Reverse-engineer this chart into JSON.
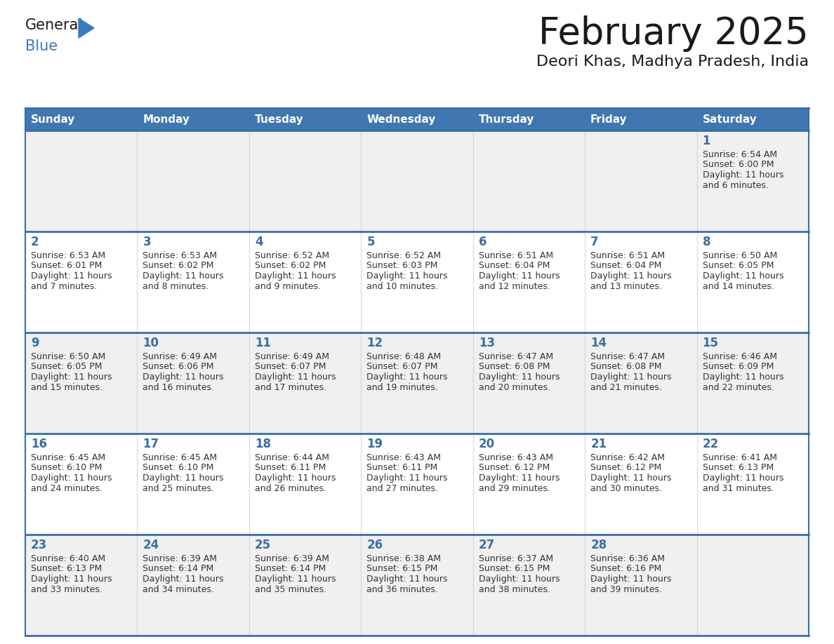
{
  "title": "February 2025",
  "subtitle": "Deori Khas, Madhya Pradesh, India",
  "days_of_week": [
    "Sunday",
    "Monday",
    "Tuesday",
    "Wednesday",
    "Thursday",
    "Friday",
    "Saturday"
  ],
  "header_bg": "#4077b0",
  "header_text": "#ffffff",
  "cell_bg_odd": "#f0f0f0",
  "cell_bg_even": "#ffffff",
  "border_color": "#3a6ea5",
  "day_number_color": "#3a6ea5",
  "text_color": "#333333",
  "logo_general_color": "#1a1a1a",
  "logo_blue_color": "#3a7abf",
  "calendar_data": [
    {
      "day": 1,
      "col": 6,
      "row": 0,
      "sunrise": "6:54 AM",
      "sunset": "6:00 PM",
      "daylight_hours": 11,
      "daylight_minutes": 6
    },
    {
      "day": 2,
      "col": 0,
      "row": 1,
      "sunrise": "6:53 AM",
      "sunset": "6:01 PM",
      "daylight_hours": 11,
      "daylight_minutes": 7
    },
    {
      "day": 3,
      "col": 1,
      "row": 1,
      "sunrise": "6:53 AM",
      "sunset": "6:02 PM",
      "daylight_hours": 11,
      "daylight_minutes": 8
    },
    {
      "day": 4,
      "col": 2,
      "row": 1,
      "sunrise": "6:52 AM",
      "sunset": "6:02 PM",
      "daylight_hours": 11,
      "daylight_minutes": 9
    },
    {
      "day": 5,
      "col": 3,
      "row": 1,
      "sunrise": "6:52 AM",
      "sunset": "6:03 PM",
      "daylight_hours": 11,
      "daylight_minutes": 10
    },
    {
      "day": 6,
      "col": 4,
      "row": 1,
      "sunrise": "6:51 AM",
      "sunset": "6:04 PM",
      "daylight_hours": 11,
      "daylight_minutes": 12
    },
    {
      "day": 7,
      "col": 5,
      "row": 1,
      "sunrise": "6:51 AM",
      "sunset": "6:04 PM",
      "daylight_hours": 11,
      "daylight_minutes": 13
    },
    {
      "day": 8,
      "col": 6,
      "row": 1,
      "sunrise": "6:50 AM",
      "sunset": "6:05 PM",
      "daylight_hours": 11,
      "daylight_minutes": 14
    },
    {
      "day": 9,
      "col": 0,
      "row": 2,
      "sunrise": "6:50 AM",
      "sunset": "6:05 PM",
      "daylight_hours": 11,
      "daylight_minutes": 15
    },
    {
      "day": 10,
      "col": 1,
      "row": 2,
      "sunrise": "6:49 AM",
      "sunset": "6:06 PM",
      "daylight_hours": 11,
      "daylight_minutes": 16
    },
    {
      "day": 11,
      "col": 2,
      "row": 2,
      "sunrise": "6:49 AM",
      "sunset": "6:07 PM",
      "daylight_hours": 11,
      "daylight_minutes": 17
    },
    {
      "day": 12,
      "col": 3,
      "row": 2,
      "sunrise": "6:48 AM",
      "sunset": "6:07 PM",
      "daylight_hours": 11,
      "daylight_minutes": 19
    },
    {
      "day": 13,
      "col": 4,
      "row": 2,
      "sunrise": "6:47 AM",
      "sunset": "6:08 PM",
      "daylight_hours": 11,
      "daylight_minutes": 20
    },
    {
      "day": 14,
      "col": 5,
      "row": 2,
      "sunrise": "6:47 AM",
      "sunset": "6:08 PM",
      "daylight_hours": 11,
      "daylight_minutes": 21
    },
    {
      "day": 15,
      "col": 6,
      "row": 2,
      "sunrise": "6:46 AM",
      "sunset": "6:09 PM",
      "daylight_hours": 11,
      "daylight_minutes": 22
    },
    {
      "day": 16,
      "col": 0,
      "row": 3,
      "sunrise": "6:45 AM",
      "sunset": "6:10 PM",
      "daylight_hours": 11,
      "daylight_minutes": 24
    },
    {
      "day": 17,
      "col": 1,
      "row": 3,
      "sunrise": "6:45 AM",
      "sunset": "6:10 PM",
      "daylight_hours": 11,
      "daylight_minutes": 25
    },
    {
      "day": 18,
      "col": 2,
      "row": 3,
      "sunrise": "6:44 AM",
      "sunset": "6:11 PM",
      "daylight_hours": 11,
      "daylight_minutes": 26
    },
    {
      "day": 19,
      "col": 3,
      "row": 3,
      "sunrise": "6:43 AM",
      "sunset": "6:11 PM",
      "daylight_hours": 11,
      "daylight_minutes": 27
    },
    {
      "day": 20,
      "col": 4,
      "row": 3,
      "sunrise": "6:43 AM",
      "sunset": "6:12 PM",
      "daylight_hours": 11,
      "daylight_minutes": 29
    },
    {
      "day": 21,
      "col": 5,
      "row": 3,
      "sunrise": "6:42 AM",
      "sunset": "6:12 PM",
      "daylight_hours": 11,
      "daylight_minutes": 30
    },
    {
      "day": 22,
      "col": 6,
      "row": 3,
      "sunrise": "6:41 AM",
      "sunset": "6:13 PM",
      "daylight_hours": 11,
      "daylight_minutes": 31
    },
    {
      "day": 23,
      "col": 0,
      "row": 4,
      "sunrise": "6:40 AM",
      "sunset": "6:13 PM",
      "daylight_hours": 11,
      "daylight_minutes": 33
    },
    {
      "day": 24,
      "col": 1,
      "row": 4,
      "sunrise": "6:39 AM",
      "sunset": "6:14 PM",
      "daylight_hours": 11,
      "daylight_minutes": 34
    },
    {
      "day": 25,
      "col": 2,
      "row": 4,
      "sunrise": "6:39 AM",
      "sunset": "6:14 PM",
      "daylight_hours": 11,
      "daylight_minutes": 35
    },
    {
      "day": 26,
      "col": 3,
      "row": 4,
      "sunrise": "6:38 AM",
      "sunset": "6:15 PM",
      "daylight_hours": 11,
      "daylight_minutes": 36
    },
    {
      "day": 27,
      "col": 4,
      "row": 4,
      "sunrise": "6:37 AM",
      "sunset": "6:15 PM",
      "daylight_hours": 11,
      "daylight_minutes": 38
    },
    {
      "day": 28,
      "col": 5,
      "row": 4,
      "sunrise": "6:36 AM",
      "sunset": "6:16 PM",
      "daylight_hours": 11,
      "daylight_minutes": 39
    }
  ]
}
